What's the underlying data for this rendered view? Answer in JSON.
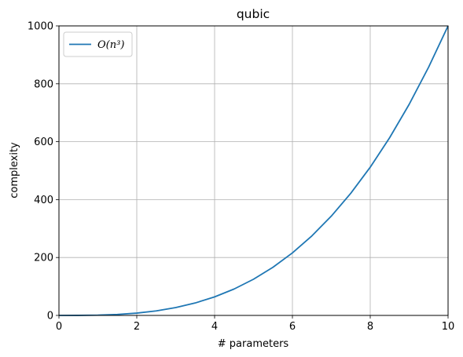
{
  "chart_data": {
    "type": "line",
    "title": "qubic",
    "xlabel": "# parameters",
    "ylabel": "complexity",
    "xlim": [
      0,
      10
    ],
    "ylim": [
      0,
      1000
    ],
    "xticks": [
      0,
      2,
      4,
      6,
      8,
      10
    ],
    "yticks": [
      0,
      200,
      400,
      600,
      800,
      1000
    ],
    "grid": true,
    "legend_position": "top-left",
    "series": [
      {
        "name": "O(n³)",
        "color": "#1f77b4",
        "x": [
          0,
          0.5,
          1,
          1.5,
          2,
          2.5,
          3,
          3.5,
          4,
          4.5,
          5,
          5.5,
          6,
          6.5,
          7,
          7.5,
          8,
          8.5,
          9,
          9.5,
          10
        ],
        "y": [
          0,
          0.125,
          1,
          3.375,
          8,
          15.625,
          27,
          42.875,
          64,
          91.125,
          125,
          166.375,
          216,
          274.625,
          343,
          421.875,
          512,
          614.125,
          729,
          857.375,
          1000
        ]
      }
    ]
  }
}
